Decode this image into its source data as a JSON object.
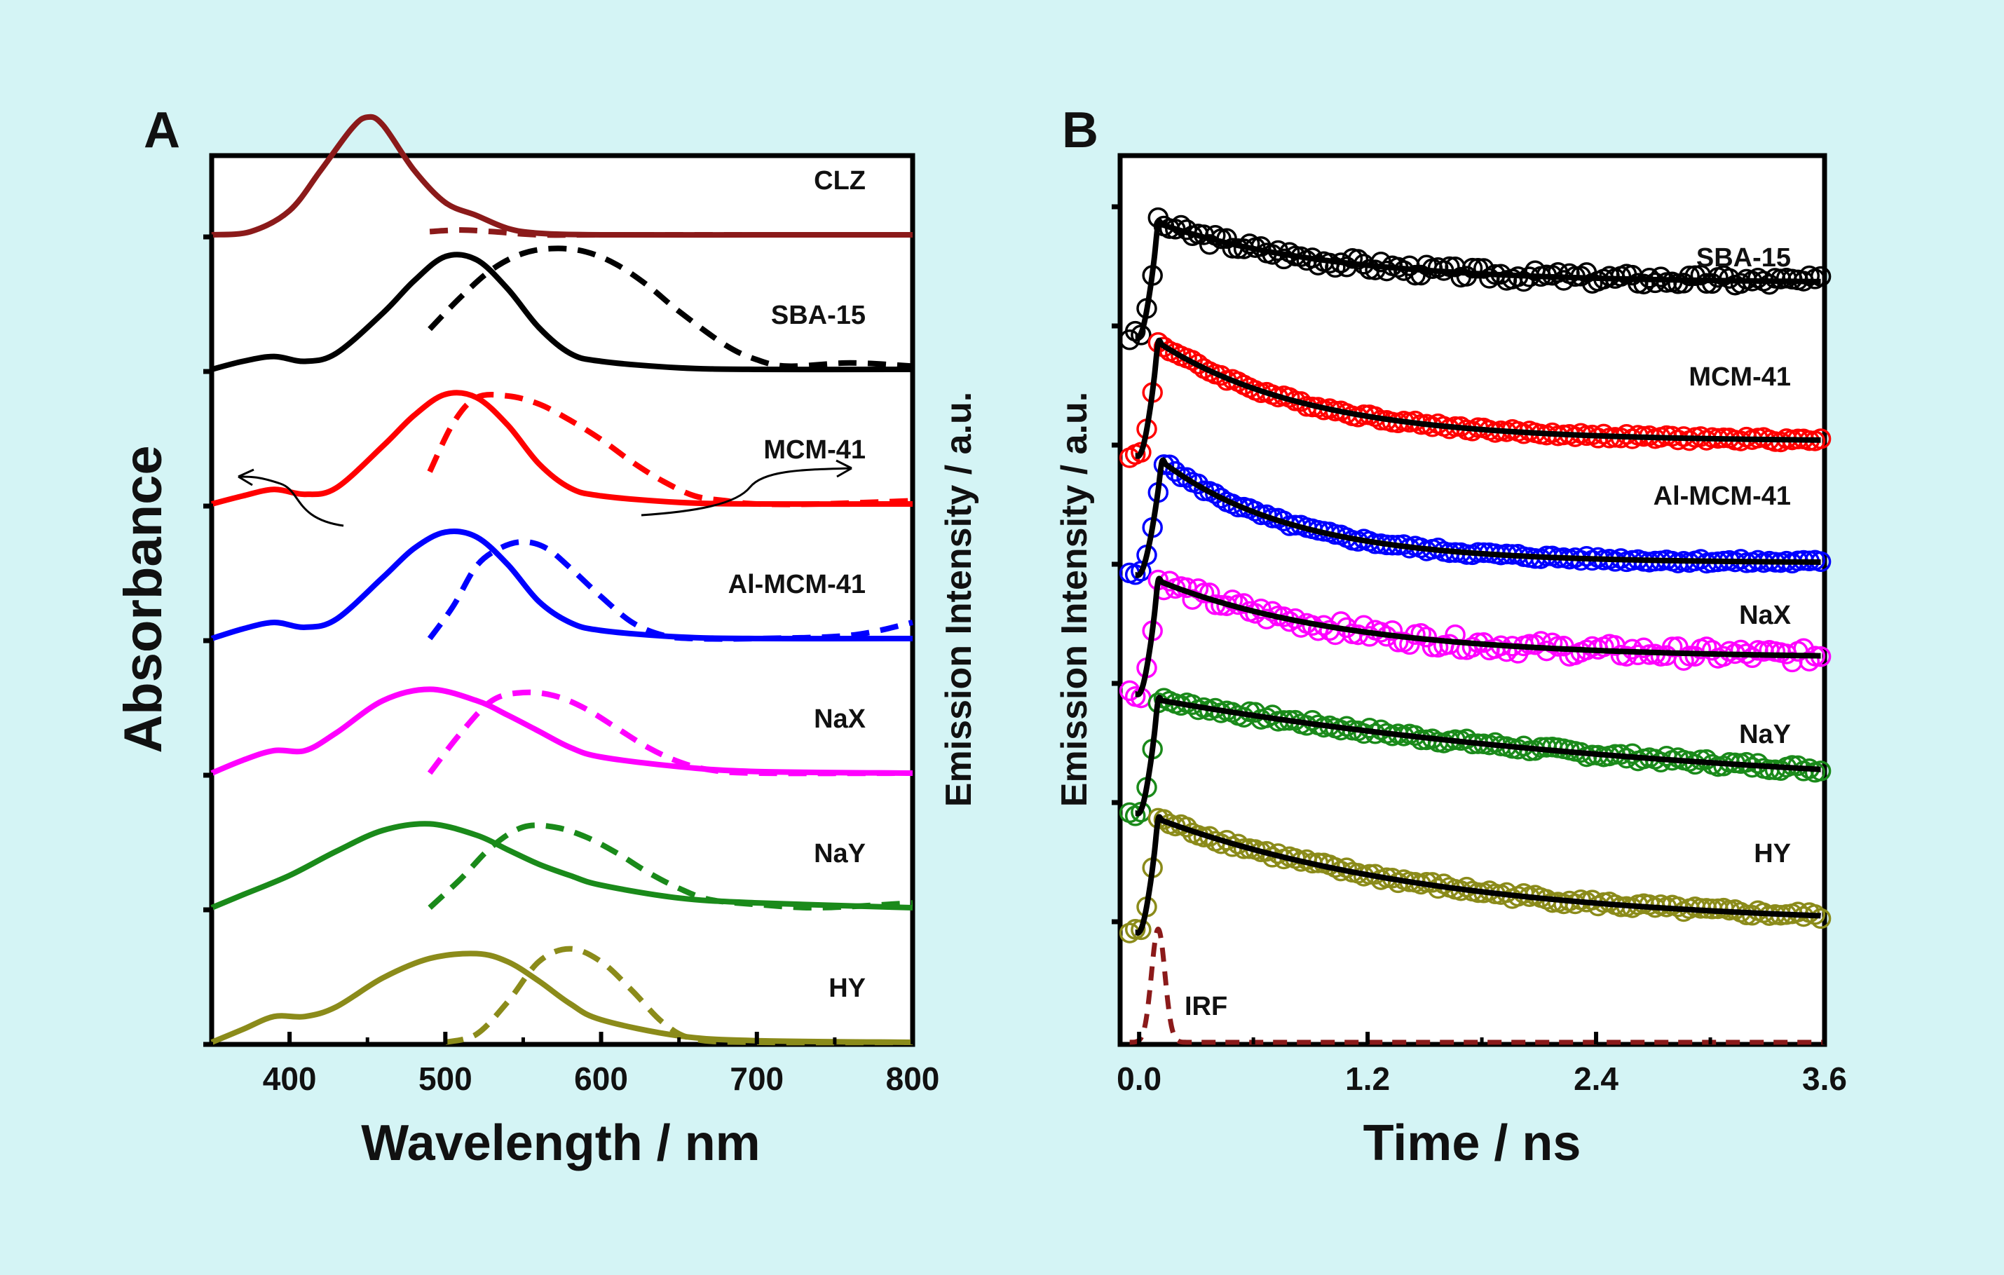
{
  "background": "#d4f4f5",
  "chart_data": [
    {
      "panel": "A",
      "type": "line",
      "xlabel": "Wavelength / nm",
      "ylabel_left": "Absorbance",
      "ylabel_right": "Emission Intensity / a.u.",
      "xlim": [
        350,
        800
      ],
      "xticks": [
        400,
        500,
        600,
        700,
        800
      ],
      "series": [
        {
          "name": "CLZ",
          "color": "#8b1a1a",
          "offset": 6,
          "abs": {
            "x": [
              350,
              375,
              400,
              420,
              440,
              450,
              460,
              480,
              500,
              520,
              540,
              560,
              600,
              700,
              800
            ],
            "y": [
              0,
              0.02,
              0.15,
              0.4,
              0.66,
              0.73,
              0.68,
              0.4,
              0.2,
              0.12,
              0.04,
              0.01,
              0,
              0,
              0
            ]
          },
          "emission": {
            "x": [
              490,
              510,
              530,
              560,
              600,
              700,
              800
            ],
            "y": [
              0.02,
              0.03,
              0.02,
              0,
              0,
              0,
              0
            ]
          }
        },
        {
          "name": "SBA-15",
          "color": "#000000",
          "offset": 5,
          "abs": {
            "x": [
              350,
              370,
              390,
              410,
              430,
              460,
              480,
              500,
              520,
              540,
              560,
              580,
              600,
              650,
              700,
              800
            ],
            "y": [
              0,
              0.05,
              0.08,
              0.05,
              0.1,
              0.35,
              0.55,
              0.7,
              0.68,
              0.5,
              0.26,
              0.1,
              0.05,
              0.01,
              0,
              0
            ]
          },
          "emission": {
            "x": [
              490,
              510,
              530,
              550,
              570,
              590,
              610,
              630,
              650,
              680,
              700,
              720,
              760,
              800
            ],
            "y": [
              0.25,
              0.45,
              0.62,
              0.72,
              0.75,
              0.73,
              0.65,
              0.52,
              0.36,
              0.15,
              0.06,
              0.02,
              0.04,
              0.02
            ]
          }
        },
        {
          "name": "MCM-41",
          "color": "#ff0000",
          "offset": 4,
          "abs": {
            "x": [
              350,
              370,
              390,
              410,
              430,
              460,
              480,
              500,
              520,
              540,
              560,
              580,
              600,
              650,
              700,
              800
            ],
            "y": [
              0,
              0.05,
              0.09,
              0.06,
              0.1,
              0.36,
              0.55,
              0.68,
              0.66,
              0.49,
              0.25,
              0.1,
              0.05,
              0.01,
              0,
              0
            ]
          },
          "emission": {
            "x": [
              490,
              505,
              520,
              540,
              560,
              580,
              600,
              620,
              640,
              660,
              680,
              700,
              740,
              800
            ],
            "y": [
              0.2,
              0.5,
              0.66,
              0.67,
              0.62,
              0.52,
              0.4,
              0.26,
              0.14,
              0.05,
              0.02,
              0.0,
              0.0,
              0.02
            ]
          }
        },
        {
          "name": "Al-MCM-41",
          "color": "#0000ff",
          "offset": 3,
          "abs": {
            "x": [
              350,
              370,
              390,
              410,
              430,
              460,
              480,
              500,
              520,
              540,
              560,
              580,
              600,
              650,
              700,
              800
            ],
            "y": [
              0,
              0.06,
              0.1,
              0.07,
              0.12,
              0.38,
              0.56,
              0.66,
              0.63,
              0.46,
              0.23,
              0.1,
              0.05,
              0.01,
              0,
              0
            ]
          },
          "emission": {
            "x": [
              490,
              505,
              520,
              535,
              550,
              565,
              580,
              600,
              620,
              640,
              660,
              700,
              760,
              800
            ],
            "y": [
              0.0,
              0.2,
              0.45,
              0.56,
              0.6,
              0.56,
              0.44,
              0.26,
              0.1,
              0.02,
              0.0,
              0.0,
              0.02,
              0.1
            ]
          }
        },
        {
          "name": "NaX",
          "color": "#ff00ff",
          "offset": 2,
          "abs": {
            "x": [
              350,
              370,
              390,
              410,
              430,
              460,
              490,
              520,
              540,
              560,
              580,
              600,
              650,
              700,
              800
            ],
            "y": [
              0,
              0.08,
              0.14,
              0.14,
              0.25,
              0.45,
              0.52,
              0.45,
              0.36,
              0.26,
              0.16,
              0.1,
              0.04,
              0.01,
              0
            ]
          },
          "emission": {
            "x": [
              490,
              510,
              530,
              550,
              570,
              590,
              610,
              630,
              650,
              670,
              700,
              800
            ],
            "y": [
              0.0,
              0.25,
              0.45,
              0.5,
              0.48,
              0.4,
              0.28,
              0.16,
              0.07,
              0.02,
              0.0,
              0.0
            ]
          }
        },
        {
          "name": "NaY",
          "color": "#1a8a1a",
          "offset": 1,
          "abs": {
            "x": [
              350,
              370,
              400,
              430,
              460,
              490,
              520,
              540,
              560,
              580,
              600,
              650,
              700,
              800
            ],
            "y": [
              0,
              0.08,
              0.2,
              0.35,
              0.48,
              0.52,
              0.45,
              0.36,
              0.27,
              0.2,
              0.14,
              0.06,
              0.03,
              0
            ]
          },
          "emission": {
            "x": [
              490,
              510,
              530,
              550,
              570,
              590,
              610,
              630,
              650,
              670,
              700,
              740,
              800
            ],
            "y": [
              0.0,
              0.18,
              0.38,
              0.5,
              0.5,
              0.44,
              0.34,
              0.22,
              0.12,
              0.05,
              0.02,
              0.0,
              0.03
            ]
          }
        },
        {
          "name": "HY",
          "color": "#8b8b1a",
          "offset": 0,
          "abs": {
            "x": [
              350,
              370,
              390,
              410,
              430,
              460,
              490,
              520,
              540,
              560,
              580,
              600,
              650,
              700,
              800
            ],
            "y": [
              0,
              0.08,
              0.16,
              0.16,
              0.22,
              0.4,
              0.52,
              0.55,
              0.5,
              0.38,
              0.24,
              0.14,
              0.04,
              0.01,
              0
            ]
          },
          "emission": {
            "x": [
              500,
              520,
              540,
              560,
              580,
              600,
              620,
              640,
              660,
              700,
              800
            ],
            "y": [
              0.0,
              0.05,
              0.25,
              0.5,
              0.58,
              0.5,
              0.32,
              0.12,
              0.02,
              0.0,
              0.0
            ]
          }
        }
      ]
    },
    {
      "panel": "B",
      "type": "scatter",
      "xlabel": "Time / ns",
      "ylabel": "Emission Intensity / a.u.",
      "xlim": [
        -0.1,
        3.6
      ],
      "xticks": [
        0.0,
        1.2,
        2.4,
        3.6
      ],
      "xtick_labels": [
        "0.0",
        "1.2",
        "2.4",
        "3.6"
      ],
      "irf_label": "IRF",
      "series": [
        {
          "name": "SBA-15",
          "color": "#000000",
          "offset": 6,
          "peak_time": 0.1,
          "amplitude": 0.95,
          "floor": 0.45,
          "tau": 0.9,
          "noise": 0.05
        },
        {
          "name": "MCM-41",
          "color": "#ff0000",
          "offset": 5,
          "peak_time": 0.1,
          "amplitude": 0.95,
          "floor": 0.12,
          "tau": 0.8,
          "noise": 0.02
        },
        {
          "name": "Al-MCM-41",
          "color": "#0000ff",
          "offset": 4,
          "peak_time": 0.12,
          "amplitude": 0.95,
          "floor": 0.1,
          "tau": 0.7,
          "noise": 0.02
        },
        {
          "name": "NaX",
          "color": "#ff00ff",
          "offset": 3,
          "peak_time": 0.1,
          "amplitude": 0.95,
          "floor": 0.3,
          "tau": 1.0,
          "noise": 0.06
        },
        {
          "name": "NaY",
          "color": "#1a8a1a",
          "offset": 2,
          "peak_time": 0.1,
          "amplitude": 0.95,
          "floor": 0.1,
          "tau": 3.0,
          "noise": 0.03
        },
        {
          "name": "HY",
          "color": "#8b8b1a",
          "offset": 1,
          "peak_time": 0.1,
          "amplitude": 0.95,
          "floor": 0.05,
          "tau": 1.5,
          "noise": 0.03
        }
      ],
      "irf": {
        "color": "#8b1a1a",
        "center": 0.1,
        "width": 0.05
      }
    }
  ],
  "panels": {
    "A": "A",
    "B": "B"
  }
}
